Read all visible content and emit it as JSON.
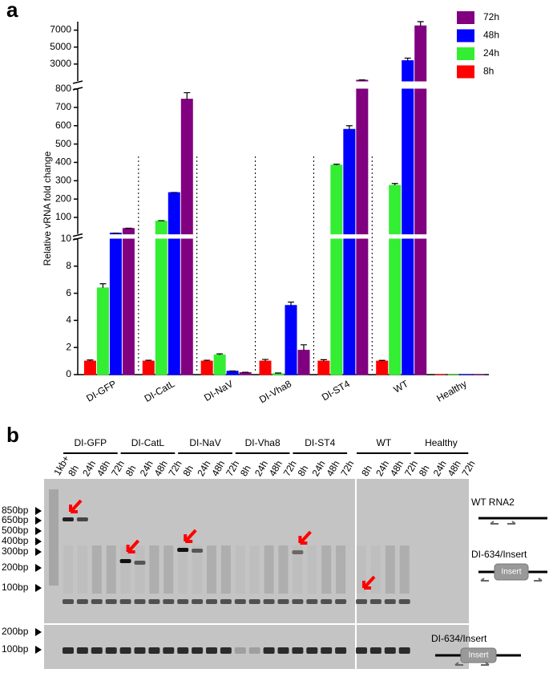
{
  "chart_data": {
    "type": "bar",
    "panel_label": "a",
    "y_label": "Relative vRNA fold change",
    "categories": [
      "DI-GFP",
      "DI-CatL",
      "DI-NaV",
      "DI-Vha8",
      "DI-ST4",
      "WT",
      "Healthy"
    ],
    "series": [
      {
        "name": "8h",
        "color": "#ff0000",
        "values": [
          1,
          1,
          1,
          1,
          1,
          1,
          0
        ],
        "errors": [
          0.08,
          0.06,
          0.06,
          0.12,
          0.1,
          0.05,
          0
        ]
      },
      {
        "name": "24h",
        "color": "#33ee33",
        "values": [
          6.4,
          80,
          1.45,
          0.07,
          385,
          275,
          0
        ],
        "errors": [
          0.3,
          2,
          0.08,
          0.05,
          5,
          10,
          0
        ]
      },
      {
        "name": "48h",
        "color": "#0000ff",
        "values": [
          14,
          235,
          0.25,
          5.1,
          580,
          3400,
          0
        ],
        "errors": [
          0.5,
          1,
          0.02,
          0.25,
          20,
          300,
          0
        ]
      },
      {
        "name": "72h",
        "color": "#800080",
        "values": [
          40,
          745,
          0.15,
          1.8,
          1100,
          7500,
          0
        ],
        "errors": [
          1,
          35,
          0.02,
          0.4,
          30,
          700,
          0
        ]
      }
    ],
    "y_segments": [
      {
        "ylim": [
          0,
          10
        ],
        "yticks": [
          0,
          2,
          4,
          6,
          8,
          10
        ]
      },
      {
        "ylim": [
          10,
          800
        ],
        "yticks": [
          100,
          200,
          300,
          400,
          500,
          600,
          700,
          800
        ]
      },
      {
        "ylim": [
          1000,
          8000
        ],
        "yticks": [
          3000,
          5000,
          7000
        ]
      }
    ]
  },
  "gel": {
    "panel_label": "b",
    "ladder_label": "1kb+",
    "groups": [
      {
        "name": "DI-GFP",
        "lanes": [
          "8h",
          "24h",
          "48h",
          "72h"
        ]
      },
      {
        "name": "DI-CatL",
        "lanes": [
          "8h",
          "24h",
          "48h",
          "72h"
        ]
      },
      {
        "name": "DI-NaV",
        "lanes": [
          "8h",
          "24h",
          "48h",
          "72h"
        ]
      },
      {
        "name": "DI-Vha8",
        "lanes": [
          "8h",
          "24h",
          "48h",
          "72h"
        ]
      },
      {
        "name": "DI-ST4",
        "lanes": [
          "8h",
          "24h",
          "48h",
          "72h"
        ]
      },
      {
        "name": "WT",
        "lanes": [
          "8h",
          "24h",
          "48h",
          "72h"
        ]
      },
      {
        "name": "Healthy",
        "lanes": [
          "8h",
          "24h",
          "48h",
          "72h"
        ]
      }
    ],
    "markers": [
      "850bp",
      "650bp",
      "500bp",
      "400bp",
      "300bp",
      "200bp",
      "100bp"
    ],
    "lower_markers": [
      "200bp",
      "100bp"
    ],
    "annotations": [
      "WT RNA2",
      "DI-634/Insert",
      "DI-634/Insert"
    ],
    "insert_label": "Insert"
  }
}
